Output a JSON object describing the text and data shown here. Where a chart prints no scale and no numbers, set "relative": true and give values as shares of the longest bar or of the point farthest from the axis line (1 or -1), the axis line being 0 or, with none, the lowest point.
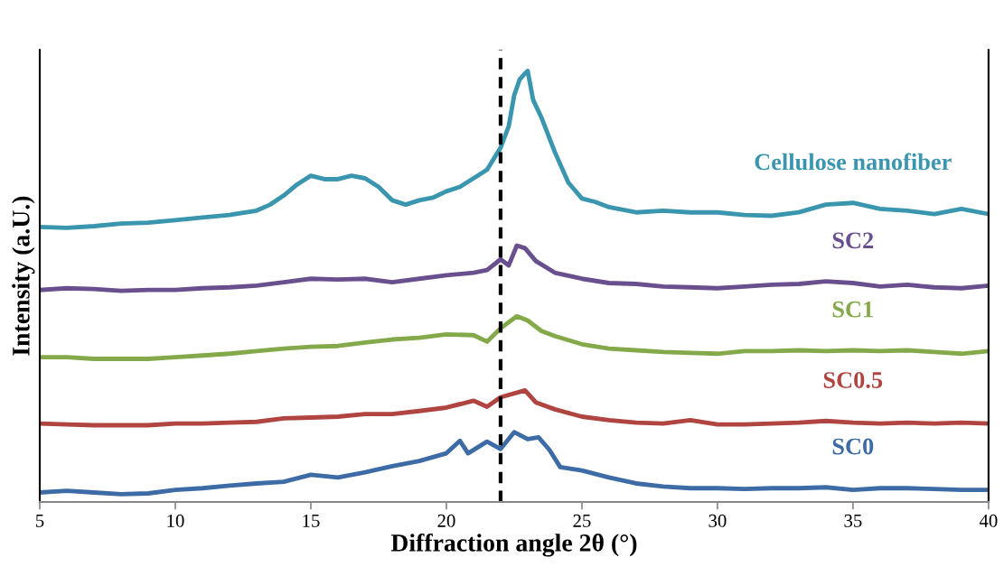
{
  "chart_data": {
    "type": "line",
    "relative": true,
    "xlabel": "Diffraction angle 2θ (°)",
    "ylabel": "Intensity (a.U.)",
    "xlim": [
      5,
      40
    ],
    "xticks": [
      5,
      10,
      15,
      20,
      25,
      30,
      35,
      40
    ],
    "tick_labels": "x",
    "grid": false,
    "legend": false,
    "marker": "none",
    "line_style": "solid",
    "ref_lines": [
      {
        "axis": "x",
        "value": 22,
        "color": "#000000",
        "line_style": "dashed"
      }
    ],
    "series": [
      {
        "name": "Cellulose nanofiber",
        "color": "#3a96ae",
        "x": [
          5,
          6,
          7,
          8,
          9,
          10,
          11,
          12,
          13,
          13.5,
          14,
          14.5,
          15,
          15.5,
          16,
          16.5,
          17,
          17.5,
          18,
          18.5,
          19,
          19.5,
          20,
          20.5,
          21,
          21.5,
          22,
          22.3,
          22.5,
          22.7,
          22.9,
          23,
          23.2,
          23.5,
          24,
          24.5,
          25,
          25.5,
          26,
          27,
          28,
          29,
          30,
          31,
          32,
          33,
          34,
          35,
          36,
          37,
          38,
          39,
          40
        ],
        "values": [
          0.638,
          0.636,
          0.64,
          0.646,
          0.648,
          0.654,
          0.66,
          0.666,
          0.676,
          0.69,
          0.711,
          0.737,
          0.757,
          0.749,
          0.749,
          0.757,
          0.751,
          0.731,
          0.7,
          0.69,
          0.7,
          0.706,
          0.721,
          0.731,
          0.751,
          0.771,
          0.822,
          0.872,
          0.943,
          0.98,
          0.994,
          1.0,
          0.933,
          0.893,
          0.812,
          0.741,
          0.704,
          0.696,
          0.684,
          0.672,
          0.676,
          0.672,
          0.672,
          0.666,
          0.664,
          0.672,
          0.69,
          0.694,
          0.68,
          0.676,
          0.668,
          0.68,
          0.668
        ]
      },
      {
        "name": "SC2",
        "color": "#6a4f8e",
        "x": [
          5,
          6,
          7,
          8,
          9,
          10,
          11,
          12,
          13,
          14,
          15,
          16,
          17,
          18,
          19,
          20,
          21,
          21.5,
          22,
          22.3,
          22.6,
          22.9,
          23.3,
          24,
          25,
          26,
          27,
          28,
          29,
          30,
          31,
          32,
          33,
          34,
          35,
          36,
          37,
          38,
          39,
          40
        ],
        "values": [
          0.492,
          0.496,
          0.494,
          0.49,
          0.492,
          0.492,
          0.496,
          0.498,
          0.502,
          0.51,
          0.518,
          0.516,
          0.518,
          0.51,
          0.518,
          0.526,
          0.532,
          0.538,
          0.563,
          0.549,
          0.595,
          0.589,
          0.559,
          0.532,
          0.518,
          0.508,
          0.506,
          0.5,
          0.498,
          0.496,
          0.5,
          0.504,
          0.506,
          0.512,
          0.508,
          0.5,
          0.504,
          0.498,
          0.496,
          0.502
        ]
      },
      {
        "name": "SC1",
        "color": "#84a94a",
        "x": [
          5,
          6,
          7,
          8,
          9,
          10,
          11,
          12,
          13,
          14,
          15,
          16,
          17,
          18,
          19,
          20,
          21,
          21.5,
          22,
          22.6,
          23,
          23.5,
          24,
          25,
          26,
          27,
          28,
          29,
          30,
          31,
          32,
          33,
          34,
          35,
          36,
          37,
          38,
          39,
          40
        ],
        "values": [
          0.336,
          0.336,
          0.332,
          0.332,
          0.332,
          0.336,
          0.34,
          0.344,
          0.35,
          0.356,
          0.36,
          0.362,
          0.37,
          0.377,
          0.381,
          0.389,
          0.387,
          0.372,
          0.403,
          0.431,
          0.421,
          0.397,
          0.385,
          0.366,
          0.356,
          0.352,
          0.348,
          0.346,
          0.344,
          0.35,
          0.35,
          0.352,
          0.35,
          0.352,
          0.35,
          0.352,
          0.348,
          0.344,
          0.35
        ]
      },
      {
        "name": "SC0.5",
        "color": "#b04440",
        "x": [
          5,
          6,
          7,
          8,
          9,
          10,
          11,
          12,
          13,
          14,
          15,
          16,
          17,
          18,
          19,
          20,
          21,
          21.5,
          22,
          22.9,
          23.3,
          24,
          25,
          26,
          27,
          28,
          29,
          30,
          31,
          32,
          33,
          34,
          35,
          36,
          37,
          38,
          39,
          40
        ],
        "values": [
          0.182,
          0.18,
          0.178,
          0.178,
          0.178,
          0.182,
          0.182,
          0.184,
          0.186,
          0.194,
          0.196,
          0.198,
          0.204,
          0.204,
          0.211,
          0.219,
          0.235,
          0.221,
          0.243,
          0.259,
          0.231,
          0.215,
          0.198,
          0.19,
          0.184,
          0.182,
          0.19,
          0.18,
          0.18,
          0.182,
          0.184,
          0.188,
          0.184,
          0.182,
          0.184,
          0.182,
          0.184,
          0.182
        ]
      },
      {
        "name": "SC0",
        "color": "#3d6ba6",
        "x": [
          5,
          6,
          7,
          8,
          9,
          10,
          11,
          12,
          13,
          14,
          15,
          16,
          17,
          18,
          19,
          20,
          20.5,
          20.8,
          21.5,
          22,
          22.5,
          23,
          23.4,
          23.8,
          24.2,
          25,
          26,
          27,
          28,
          29,
          30,
          31,
          32,
          33,
          34,
          35,
          36,
          37,
          38,
          39,
          40
        ],
        "values": [
          0.022,
          0.026,
          0.022,
          0.018,
          0.02,
          0.028,
          0.032,
          0.038,
          0.043,
          0.047,
          0.063,
          0.057,
          0.069,
          0.083,
          0.095,
          0.113,
          0.142,
          0.113,
          0.14,
          0.123,
          0.162,
          0.146,
          0.15,
          0.121,
          0.081,
          0.073,
          0.057,
          0.043,
          0.036,
          0.032,
          0.032,
          0.03,
          0.032,
          0.032,
          0.034,
          0.028,
          0.032,
          0.032,
          0.03,
          0.028,
          0.028
        ]
      }
    ]
  }
}
